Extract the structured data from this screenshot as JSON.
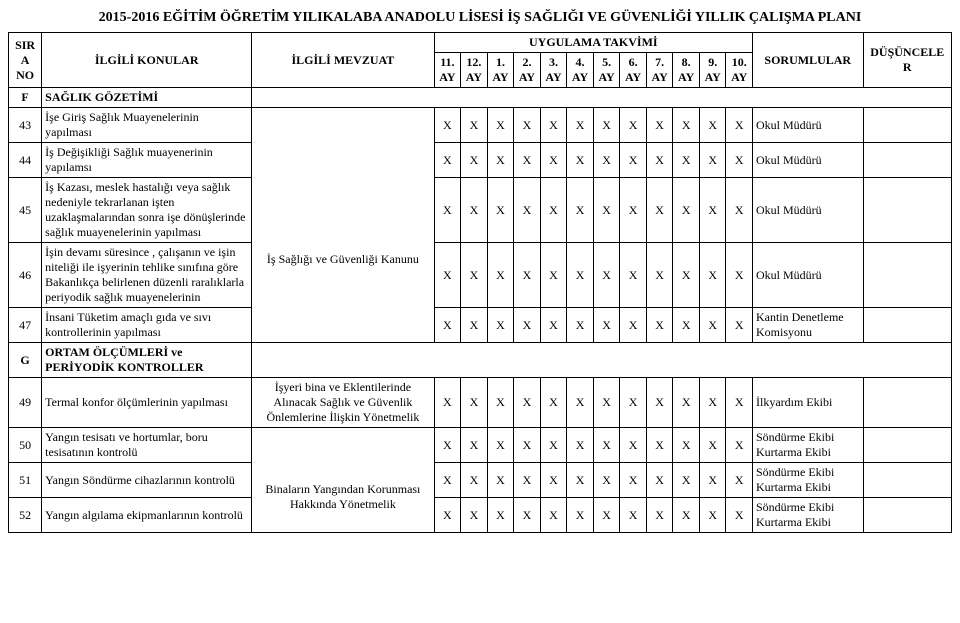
{
  "title": "2015-2016 EĞİTİM ÖĞRETİM YILIKALABA ANADOLU LİSESİ İŞ SAĞLIĞI VE GÜVENLİĞİ YILLIK ÇALIŞMA PLANI",
  "headers": {
    "sira": "SIRA NO",
    "konular": "İLGİLİ KONULAR",
    "mevzuat": "İLGİLİ MEVZUAT",
    "takvim": "UYGULAMA TAKVİMİ",
    "sorumlular": "SORUMLULAR",
    "dusunceler": "DÜŞÜNCELER",
    "months": [
      "11. AY",
      "12. AY",
      "1. AY",
      "2. AY",
      "3. AY",
      "4. AY",
      "5. AY",
      "6. AY",
      "7. AY",
      "8. AY",
      "9. AY",
      "10. AY"
    ]
  },
  "sections": [
    {
      "code": "F",
      "label": "SAĞLIK GÖZETİMİ"
    },
    {
      "code": "G",
      "label": "ORTAM ÖLÇÜMLERİ ve PERİYODİK KONTROLLER"
    }
  ],
  "rows": [
    {
      "no": "43",
      "konu": "İşe Giriş Sağlık Muayenelerinin yapılması",
      "mevzuat": "",
      "marks": [
        "X",
        "X",
        "X",
        "X",
        "X",
        "X",
        "X",
        "X",
        "X",
        "X",
        "X",
        "X"
      ],
      "sorumlu": "Okul Müdürü"
    },
    {
      "no": "44",
      "konu": "İş Değişikliği Sağlık muayenerinin yapılamsı",
      "mevzuat": "",
      "marks": [
        "X",
        "X",
        "X",
        "X",
        "X",
        "X",
        "X",
        "X",
        "X",
        "X",
        "X",
        "X"
      ],
      "sorumlu": "Okul Müdürü"
    },
    {
      "no": "45",
      "konu": "İş Kazası, meslek hastalığı veya sağlık nedeniyle tekrarlanan işten uzaklaşmalarından sonra işe dönüşlerinde sağlık muayenelerinin yapılması",
      "mevzuat": "İş Sağlığı ve Güvenliği Kanunu",
      "marks": [
        "X",
        "X",
        "X",
        "X",
        "X",
        "X",
        "X",
        "X",
        "X",
        "X",
        "X",
        "X"
      ],
      "sorumlu": "Okul Müdürü"
    },
    {
      "no": "46",
      "konu": "İşin devamı süresince , çalışanın ve işin niteliği ile işyerinin tehlike sınıfına göre Bakanlıkça belirlenen düzenli raralıklarla periyodik sağlık muayenelerinin",
      "mevzuat": "",
      "marks": [
        "X",
        "X",
        "X",
        "X",
        "X",
        "X",
        "X",
        "X",
        "X",
        "X",
        "X",
        "X"
      ],
      "sorumlu": "Okul Müdürü"
    },
    {
      "no": "47",
      "konu": "İnsani Tüketim amaçlı gıda ve sıvı kontrollerinin yapılması",
      "mevzuat": "",
      "marks": [
        "X",
        "X",
        "X",
        "X",
        "X",
        "X",
        "X",
        "X",
        "X",
        "X",
        "X",
        "X"
      ],
      "sorumlu": "Kantin Denetleme Komisyonu"
    },
    {
      "no": "49",
      "konu": "Termal konfor ölçümlerinin yapılması",
      "mevzuat": "İşyeri bina ve Eklentilerinde Alınacak Sağlık ve Güvenlik Önlemlerine İlişkin Yönetmelik",
      "marks": [
        "X",
        "X",
        "X",
        "X",
        "X",
        "X",
        "X",
        "X",
        "X",
        "X",
        "X",
        "X"
      ],
      "sorumlu": "İlkyardım Ekibi"
    },
    {
      "no": "50",
      "konu": "Yangın tesisatı ve hortumlar, boru tesisatının kontrolü",
      "mevzuat": "",
      "marks": [
        "X",
        "X",
        "X",
        "X",
        "X",
        "X",
        "X",
        "X",
        "X",
        "X",
        "X",
        "X"
      ],
      "sorumlu": "Söndürme Ekibi Kurtarma Ekibi"
    },
    {
      "no": "51",
      "konu": "Yangın Söndürme cihazlarının kontrolü",
      "mevzuat": "Binaların Yangından Korunması Hakkında Yönetmelik",
      "marks": [
        "X",
        "X",
        "X",
        "X",
        "X",
        "X",
        "X",
        "X",
        "X",
        "X",
        "X",
        "X"
      ],
      "sorumlu": "Söndürme Ekibi Kurtarma Ekibi"
    },
    {
      "no": "52",
      "konu": "Yangın algılama ekipmanlarının kontrolü",
      "mevzuat": "",
      "marks": [
        "X",
        "X",
        "X",
        "X",
        "X",
        "X",
        "X",
        "X",
        "X",
        "X",
        "X",
        "X"
      ],
      "sorumlu": "Söndürme Ekibi Kurtarma Ekibi"
    }
  ]
}
